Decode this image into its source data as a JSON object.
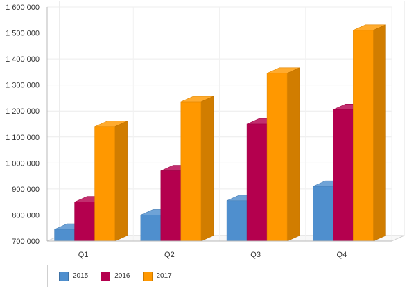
{
  "chart_data": {
    "type": "bar",
    "categories": [
      "Q1",
      "Q2",
      "Q3",
      "Q4"
    ],
    "series": [
      {
        "name": "2015",
        "color": "#4f8fce",
        "values": [
          745000,
          800000,
          855000,
          910000
        ]
      },
      {
        "name": "2016",
        "color": "#b4004e",
        "values": [
          850000,
          970000,
          1150000,
          1205000
        ]
      },
      {
        "name": "2017",
        "color": "#ff9800",
        "values": [
          1140000,
          1235000,
          1345000,
          1510000
        ]
      }
    ],
    "yticks": [
      "700 000",
      "800 000",
      "900 000",
      "1 000 000",
      "1 100 000",
      "1 200 000",
      "1 300 000",
      "1 400 000",
      "1 500 000",
      "1 600 000"
    ],
    "ylim": [
      700000,
      1600000
    ],
    "title": "",
    "xlabel": "",
    "ylabel": "",
    "grid": true,
    "legend": "bottom"
  }
}
